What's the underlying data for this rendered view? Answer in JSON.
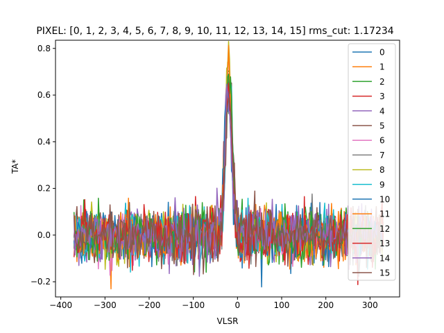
{
  "chart_data": {
    "type": "line",
    "title": "PIXEL: [0, 1, 2, 3, 4, 5, 6, 7, 8, 9, 10, 11, 12, 13, 14, 15]   rms_cut: 1.17234",
    "xlabel": "VLSR",
    "ylabel": "TA*",
    "xlim": [
      -412,
      367
    ],
    "ylim": [
      -0.265,
      0.835
    ],
    "xticks": [
      -400,
      -300,
      -200,
      -100,
      0,
      100,
      200,
      300
    ],
    "xtick_labels": [
      "−400",
      "−300",
      "−200",
      "−100",
      "0",
      "100",
      "200",
      "300"
    ],
    "yticks": [
      -0.2,
      0.0,
      0.2,
      0.4,
      0.6,
      0.8
    ],
    "ytick_labels": [
      "−0.2",
      "0.0",
      "0.2",
      "0.4",
      "0.6",
      "0.8"
    ],
    "grid": false,
    "legend_position": "top-right",
    "x_range": [
      -370,
      330
    ],
    "line_center": -20,
    "line_peak": 0.72,
    "noise_sigma": 0.055,
    "series": [
      {
        "name": "0",
        "color": "#1f77b4"
      },
      {
        "name": "1",
        "color": "#ff7f0e"
      },
      {
        "name": "2",
        "color": "#2ca02c"
      },
      {
        "name": "3",
        "color": "#d62728"
      },
      {
        "name": "4",
        "color": "#9467bd"
      },
      {
        "name": "5",
        "color": "#8c564b"
      },
      {
        "name": "6",
        "color": "#e377c2"
      },
      {
        "name": "7",
        "color": "#7f7f7f"
      },
      {
        "name": "8",
        "color": "#bcbd22"
      },
      {
        "name": "9",
        "color": "#17becf"
      },
      {
        "name": "10",
        "color": "#1f77b4"
      },
      {
        "name": "11",
        "color": "#ff7f0e"
      },
      {
        "name": "12",
        "color": "#2ca02c"
      },
      {
        "name": "13",
        "color": "#d62728"
      },
      {
        "name": "14",
        "color": "#9467bd"
      },
      {
        "name": "15",
        "color": "#8c564b"
      }
    ]
  }
}
